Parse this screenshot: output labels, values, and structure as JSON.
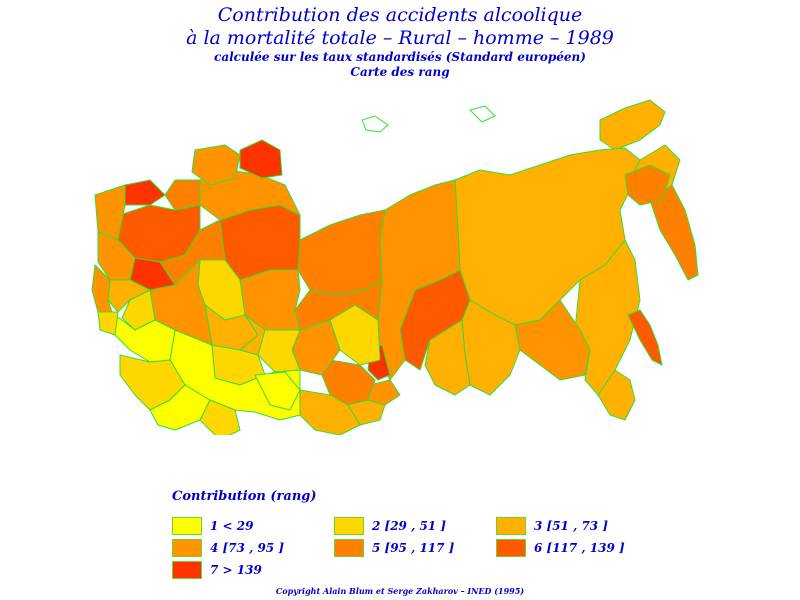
{
  "title": {
    "line1": "Contribution des accidents alcoolique",
    "line2": "à la mortalité totale  –  Rural  –  homme  –  1989",
    "line3": "calculée sur les taux standardisés (Standard européen)",
    "line4": "Carte des rang"
  },
  "legend": {
    "title": "Contribution (rang)",
    "items": [
      {
        "label": "1  <  29",
        "color": "#ffff00"
      },
      {
        "label": "2 [29 , 51 ]",
        "color": "#ffd700"
      },
      {
        "label": "3 [51 , 73 ]",
        "color": "#ffb000"
      },
      {
        "label": "4 [73 , 95 ]",
        "color": "#ff9400"
      },
      {
        "label": "5 [95 , 117 ]",
        "color": "#ff7f00"
      },
      {
        "label": "6 [117 , 139 ]",
        "color": "#ff5a00"
      },
      {
        "label": "7  >  139",
        "color": "#ff3300"
      }
    ]
  },
  "border_color": "#33dd33",
  "copyright": "Copyright  Alain  Blum  et  Serge  Zakharov  –  INED (1995)"
}
